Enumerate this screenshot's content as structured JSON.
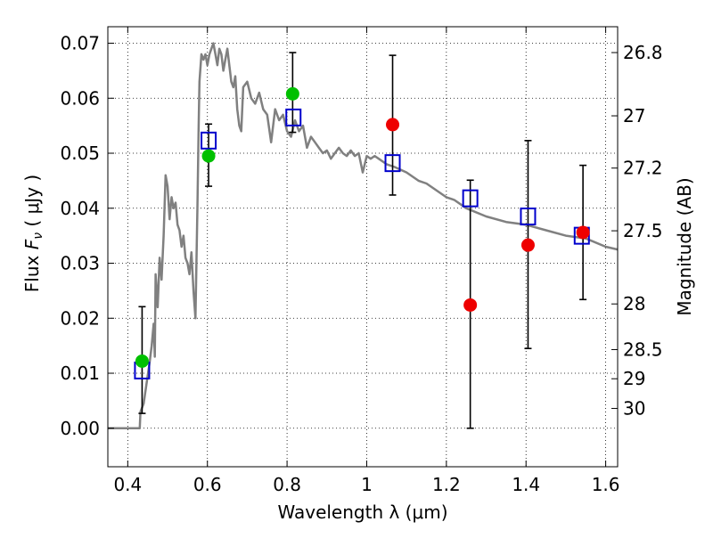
{
  "chart_data": {
    "type": "scatter",
    "xlabel": "Wavelength  λ (μm)",
    "ylabel": "Flux  F_ν  ( μJy )",
    "ylabel_parts": {
      "prefix": "Flux  ",
      "symbol": "F",
      "subscript": "ν",
      "suffix": "  ( μJy )"
    },
    "y2label": "Magnitude (AB)",
    "xlim": [
      0.35,
      1.63
    ],
    "ylim": [
      -0.007,
      0.073
    ],
    "xticks": [
      0.4,
      0.6,
      0.8,
      1.0,
      1.2,
      1.4,
      1.6
    ],
    "xtick_labels": [
      "0.4",
      "0.6",
      "0.8",
      "1",
      "1.2",
      "1.4",
      "1.6"
    ],
    "yticks": [
      0.0,
      0.01,
      0.02,
      0.03,
      0.04,
      0.05,
      0.06,
      0.07
    ],
    "ytick_labels": [
      "0.00",
      "0.01",
      "0.02",
      "0.03",
      "0.04",
      "0.05",
      "0.06",
      "0.07"
    ],
    "y2ticks": [
      {
        "label": "26.8",
        "flux": 0.0683
      },
      {
        "label": "27",
        "flux": 0.0568
      },
      {
        "label": "27.2",
        "flux": 0.0473
      },
      {
        "label": "27.5",
        "flux": 0.0359
      },
      {
        "label": "28",
        "flux": 0.0226
      },
      {
        "label": "28.5",
        "flux": 0.0143
      },
      {
        "label": "29",
        "flux": 0.009
      },
      {
        "label": "30",
        "flux": 0.0036
      }
    ],
    "grid": true,
    "legend": "none",
    "series": [
      {
        "kind": "line",
        "color": "#808080",
        "x": [
          0.35,
          0.43,
          0.432,
          0.44,
          0.455,
          0.46,
          0.465,
          0.468,
          0.47,
          0.475,
          0.48,
          0.485,
          0.49,
          0.495,
          0.5,
          0.505,
          0.51,
          0.515,
          0.52,
          0.525,
          0.53,
          0.535,
          0.54,
          0.545,
          0.55,
          0.555,
          0.56,
          0.565,
          0.57,
          0.575,
          0.578,
          0.58,
          0.585,
          0.59,
          0.595,
          0.6,
          0.605,
          0.61,
          0.615,
          0.62,
          0.625,
          0.63,
          0.635,
          0.64,
          0.645,
          0.65,
          0.655,
          0.66,
          0.665,
          0.67,
          0.675,
          0.68,
          0.685,
          0.69,
          0.7,
          0.71,
          0.72,
          0.73,
          0.74,
          0.75,
          0.76,
          0.77,
          0.78,
          0.79,
          0.8,
          0.81,
          0.82,
          0.83,
          0.84,
          0.85,
          0.86,
          0.87,
          0.88,
          0.89,
          0.9,
          0.91,
          0.92,
          0.93,
          0.94,
          0.95,
          0.96,
          0.97,
          0.98,
          0.99,
          1.0,
          1.01,
          1.02,
          1.03,
          1.05,
          1.07,
          1.1,
          1.13,
          1.15,
          1.2,
          1.22,
          1.25,
          1.3,
          1.35,
          1.4,
          1.45,
          1.5,
          1.55,
          1.6,
          1.63
        ],
        "y": [
          0.0,
          0.0,
          0.003,
          0.0045,
          0.012,
          0.015,
          0.019,
          0.013,
          0.028,
          0.022,
          0.031,
          0.027,
          0.035,
          0.046,
          0.044,
          0.038,
          0.042,
          0.04,
          0.041,
          0.037,
          0.036,
          0.033,
          0.035,
          0.031,
          0.03,
          0.028,
          0.032,
          0.025,
          0.02,
          0.04,
          0.055,
          0.063,
          0.068,
          0.067,
          0.068,
          0.066,
          0.068,
          0.069,
          0.07,
          0.068,
          0.066,
          0.069,
          0.068,
          0.065,
          0.067,
          0.069,
          0.066,
          0.063,
          0.062,
          0.064,
          0.058,
          0.055,
          0.054,
          0.062,
          0.063,
          0.06,
          0.059,
          0.061,
          0.058,
          0.057,
          0.052,
          0.058,
          0.056,
          0.057,
          0.054,
          0.053,
          0.056,
          0.054,
          0.055,
          0.051,
          0.053,
          0.052,
          0.051,
          0.05,
          0.0505,
          0.049,
          0.05,
          0.051,
          0.05,
          0.0495,
          0.0505,
          0.0495,
          0.05,
          0.0465,
          0.0495,
          0.049,
          0.0495,
          0.049,
          0.048,
          0.0475,
          0.0465,
          0.045,
          0.0445,
          0.042,
          0.0415,
          0.04,
          0.0385,
          0.0375,
          0.037,
          0.036,
          0.035,
          0.0345,
          0.033,
          0.0325
        ]
      },
      {
        "kind": "squares",
        "color": "#0000cc",
        "x": [
          0.436,
          0.603,
          0.816,
          1.065,
          1.26,
          1.405,
          1.54
        ],
        "y": [
          0.0105,
          0.0523,
          0.0565,
          0.0482,
          0.0418,
          0.0385,
          0.035
        ]
      },
      {
        "kind": "points-errorbars",
        "color": "#00c000",
        "x": [
          0.436,
          0.603,
          0.814
        ],
        "y": [
          0.0122,
          0.0495,
          0.0608
        ],
        "yerr_low": [
          0.0027,
          0.044,
          0.0538
        ],
        "yerr_high": [
          0.0221,
          0.0553,
          0.0683
        ]
      },
      {
        "kind": "points-errorbars",
        "color": "#ee0000",
        "x": [
          1.065,
          1.26,
          1.405,
          1.543
        ],
        "y": [
          0.0552,
          0.0224,
          0.0333,
          0.0356
        ],
        "yerr_low": [
          0.0424,
          0.0,
          0.0145,
          0.0234
        ],
        "yerr_high": [
          0.0678,
          0.0451,
          0.0523,
          0.0478
        ]
      }
    ]
  }
}
